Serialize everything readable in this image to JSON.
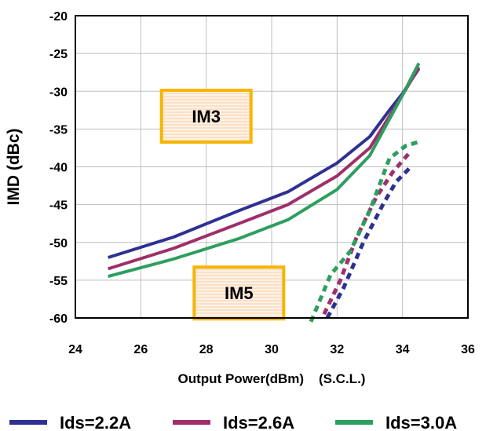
{
  "chart_data": {
    "type": "line",
    "title": "",
    "xlabel": "Output Power(dBm)    (S.C.L.)",
    "ylabel": "IMD (dBc)",
    "xlim": [
      24,
      36
    ],
    "ylim": [
      -60,
      -20
    ],
    "xticks": [
      "24",
      "26",
      "28",
      "30",
      "32",
      "34",
      "36"
    ],
    "yticks": [
      "-20",
      "-25",
      "-30",
      "-35",
      "-40",
      "-45",
      "-50",
      "-55",
      "-60"
    ],
    "grid": true,
    "legend_position": "bottom",
    "annotations": [
      {
        "text": "IM3",
        "x": 28.0,
        "y": -33.3
      },
      {
        "text": "IM5",
        "x": 29.0,
        "y": -56.7
      }
    ],
    "series": [
      {
        "name": "Ids=2.2A",
        "kind": "IM3",
        "color": "#2e3192",
        "style": "solid",
        "x": [
          25,
          27,
          29,
          30.5,
          32,
          33,
          33.6,
          34,
          34.5
        ],
        "y": [
          -52,
          -49.3,
          -45.8,
          -43.3,
          -39.5,
          -36,
          -32.5,
          -30.3,
          -27
        ]
      },
      {
        "name": "Ids=2.6A",
        "kind": "IM3",
        "color": "#9e2f6a",
        "style": "solid",
        "x": [
          25,
          27,
          29,
          30.5,
          32,
          33,
          33.6,
          34,
          34.5
        ],
        "y": [
          -53.5,
          -50.8,
          -47.5,
          -45,
          -41.2,
          -37.5,
          -33.3,
          -30.5,
          -26.8
        ]
      },
      {
        "name": "Ids=3.0A",
        "kind": "IM3",
        "color": "#2e9e5f",
        "style": "solid",
        "x": [
          25,
          27,
          29,
          30.5,
          32,
          33,
          33.5,
          34,
          34.5
        ],
        "y": [
          -54.5,
          -52.2,
          -49.5,
          -47,
          -43,
          -38.5,
          -34.5,
          -30.5,
          -26.3
        ]
      },
      {
        "name": "Ids=2.2A",
        "kind": "IM5",
        "color": "#2e3192",
        "style": "dotted",
        "x": [
          31.7,
          32.2,
          32.8,
          33.4,
          33.8,
          34.3
        ],
        "y": [
          -60,
          -56,
          -50,
          -45,
          -42,
          -39.8
        ]
      },
      {
        "name": "Ids=2.6A",
        "kind": "IM5",
        "color": "#9e2f6a",
        "style": "dotted",
        "x": [
          31.6,
          32.1,
          32.6,
          33.2,
          33.7,
          34.2
        ],
        "y": [
          -59.5,
          -55,
          -49.3,
          -44,
          -40.7,
          -38.2
        ]
      },
      {
        "name": "Ids=3.0A",
        "kind": "IM5",
        "color": "#2e9e5f",
        "style": "dotted",
        "x": [
          31.2,
          31.8,
          32.4,
          33,
          33.6,
          34.1,
          34.5
        ],
        "y": [
          -60.5,
          -54.3,
          -51.2,
          -45.8,
          -38.9,
          -37.2,
          -36.7
        ]
      }
    ]
  }
}
